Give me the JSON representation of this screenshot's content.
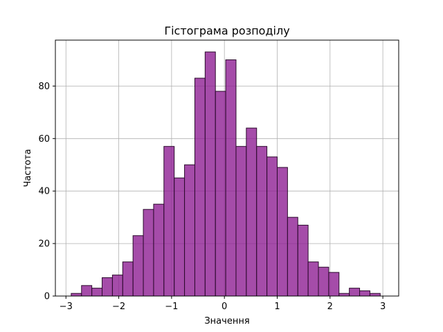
{
  "chart_data": {
    "type": "bar",
    "title": "Гістограма розподілу",
    "xlabel": "Значення",
    "ylabel": "Частота",
    "xlim": [
      -3.2,
      3.3
    ],
    "ylim": [
      0,
      97.5
    ],
    "xticks": [
      -3,
      -2,
      -1,
      0,
      1,
      2,
      3
    ],
    "xtick_labels": [
      "−3",
      "−2",
      "−1",
      "0",
      "1",
      "2",
      "3"
    ],
    "yticks": [
      0,
      20,
      40,
      60,
      80
    ],
    "ytick_labels": [
      "0",
      "20",
      "40",
      "60",
      "80"
    ],
    "grid": true,
    "bar_color": "#8e1f94",
    "bar_opacity": 0.8,
    "edge_color": "#2b0a2c",
    "bin_start": -2.9,
    "bin_width": 0.195,
    "values": [
      1,
      4,
      3,
      7,
      8,
      13,
      23,
      33,
      35,
      57,
      45,
      50,
      83,
      93,
      78,
      90,
      57,
      64,
      57,
      53,
      49,
      30,
      27,
      13,
      11,
      9,
      1,
      3,
      2,
      1
    ]
  }
}
